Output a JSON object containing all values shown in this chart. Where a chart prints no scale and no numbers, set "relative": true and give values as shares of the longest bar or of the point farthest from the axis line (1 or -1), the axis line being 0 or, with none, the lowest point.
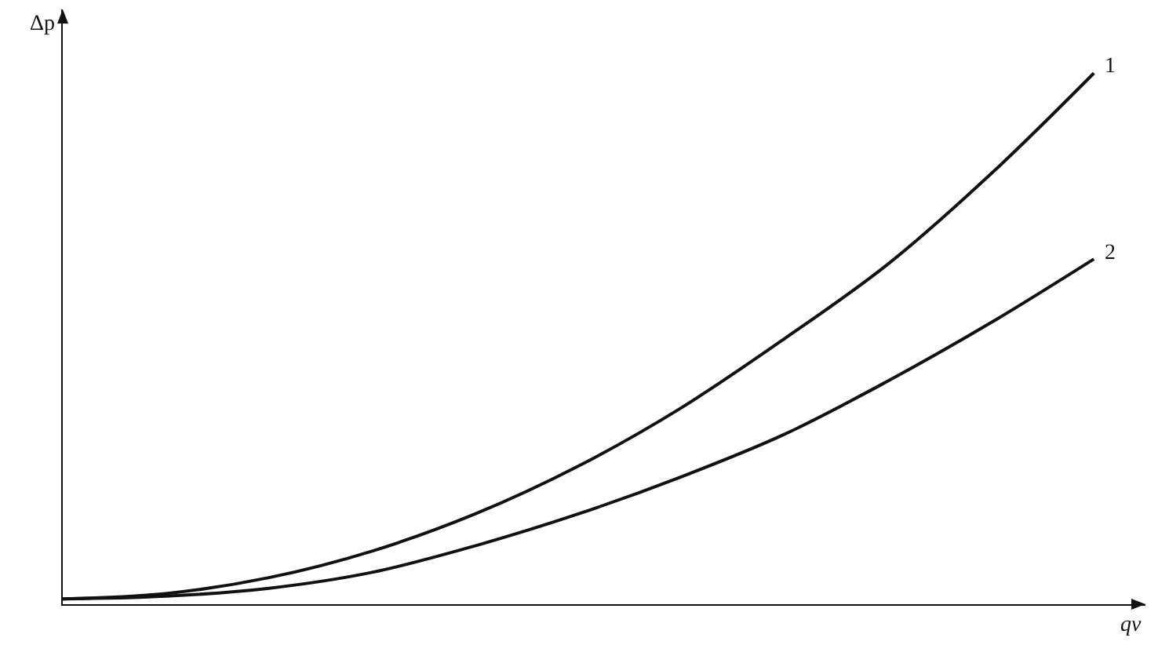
{
  "chart_data": {
    "type": "line",
    "relative": true,
    "xlabel": "qv",
    "ylabel": "Δp",
    "categories": [
      null,
      null,
      null,
      null,
      null,
      null,
      null,
      null,
      null,
      null,
      null
    ],
    "series": [
      {
        "name": "1",
        "color": "#111111",
        "values": [
          0.01,
          0.02,
          0.05,
          0.1,
          0.17,
          0.26,
          0.37,
          0.5,
          0.64,
          0.81,
          1
        ]
      },
      {
        "name": "2",
        "color": "#111111",
        "values": [
          0.01,
          0.015,
          0.03,
          0.06,
          0.11,
          0.17,
          0.24,
          0.32,
          0.42,
          0.53,
          0.65
        ]
      }
    ]
  }
}
